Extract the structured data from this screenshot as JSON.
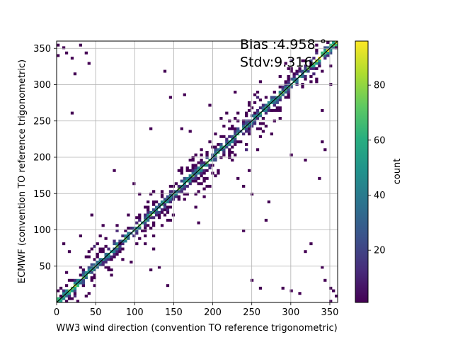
{
  "chart_data": {
    "type": "heatmap",
    "title": "",
    "xlabel": "WW3 wind direction (convention TO reference trigonometric)",
    "ylabel": "ECMWF (convention TO reference trigonometric)",
    "xlim": [
      0,
      360
    ],
    "ylim": [
      0,
      360
    ],
    "xticks": [
      0,
      50,
      100,
      150,
      200,
      250,
      300,
      350
    ],
    "yticks": [
      50,
      100,
      150,
      200,
      250,
      300,
      350
    ],
    "grid": true,
    "bin_width_deg": 3.6,
    "colorbar": {
      "label": "count",
      "min": 1,
      "max": 96,
      "ticks": [
        20,
        40,
        60,
        80
      ],
      "colormap": "viridis"
    },
    "annotations": [
      {
        "text": "Bias :4.958 °"
      },
      {
        "text": "Stdv:9.316"
      }
    ],
    "reference_line": {
      "from": [
        0,
        0
      ],
      "to": [
        360,
        360
      ],
      "color": "#000000"
    },
    "scatter_outliers": [
      {
        "x": 3,
        "y": 355
      },
      {
        "x": 12,
        "y": 345
      },
      {
        "x": 18,
        "y": 338
      },
      {
        "x": 22,
        "y": 315
      },
      {
        "x": 36,
        "y": 345
      },
      {
        "x": 42,
        "y": 330
      },
      {
        "x": 30,
        "y": 355
      },
      {
        "x": 20,
        "y": 260
      },
      {
        "x": 140,
        "y": 320
      },
      {
        "x": 145,
        "y": 283
      },
      {
        "x": 75,
        "y": 180
      },
      {
        "x": 85,
        "y": 60
      },
      {
        "x": 123,
        "y": 75
      },
      {
        "x": 120,
        "y": 45
      },
      {
        "x": 130,
        "y": 50
      },
      {
        "x": 142,
        "y": 22
      },
      {
        "x": 8,
        "y": 80
      },
      {
        "x": 16,
        "y": 70
      },
      {
        "x": 30,
        "y": 90
      },
      {
        "x": 44,
        "y": 120
      },
      {
        "x": 60,
        "y": 105
      },
      {
        "x": 120,
        "y": 240
      },
      {
        "x": 165,
        "y": 285
      },
      {
        "x": 230,
        "y": 290
      },
      {
        "x": 218,
        "y": 260
      },
      {
        "x": 260,
        "y": 305
      },
      {
        "x": 300,
        "y": 320
      },
      {
        "x": 326,
        "y": 330
      },
      {
        "x": 320,
        "y": 197
      },
      {
        "x": 335,
        "y": 172
      },
      {
        "x": 345,
        "y": 210
      },
      {
        "x": 340,
        "y": 220
      },
      {
        "x": 340,
        "y": 265
      },
      {
        "x": 300,
        "y": 205
      },
      {
        "x": 272,
        "y": 140
      },
      {
        "x": 268,
        "y": 115
      },
      {
        "x": 262,
        "y": 18
      },
      {
        "x": 250,
        "y": 30
      },
      {
        "x": 288,
        "y": 18
      },
      {
        "x": 300,
        "y": 15
      },
      {
        "x": 310,
        "y": 12
      },
      {
        "x": 318,
        "y": 70
      },
      {
        "x": 324,
        "y": 80
      },
      {
        "x": 340,
        "y": 50
      },
      {
        "x": 345,
        "y": 30
      },
      {
        "x": 352,
        "y": 20
      },
      {
        "x": 358,
        "y": 8
      },
      {
        "x": 355,
        "y": 15
      },
      {
        "x": 238,
        "y": 100
      },
      {
        "x": 250,
        "y": 150
      },
      {
        "x": 196,
        "y": 160
      },
      {
        "x": 206,
        "y": 180
      },
      {
        "x": 220,
        "y": 240
      },
      {
        "x": 195,
        "y": 270
      },
      {
        "x": 210,
        "y": 255
      },
      {
        "x": 275,
        "y": 265
      },
      {
        "x": 280,
        "y": 290
      },
      {
        "x": 295,
        "y": 330
      },
      {
        "x": 352,
        "y": 300
      },
      {
        "x": 358,
        "y": 350
      },
      {
        "x": 5,
        "y": 10
      },
      {
        "x": 350,
        "y": 3
      },
      {
        "x": 2,
        "y": 340
      },
      {
        "x": 8,
        "y": 352
      },
      {
        "x": 160,
        "y": 240
      },
      {
        "x": 170,
        "y": 235
      },
      {
        "x": 100,
        "y": 165
      },
      {
        "x": 105,
        "y": 148
      },
      {
        "x": 112,
        "y": 130
      },
      {
        "x": 180,
        "y": 110
      },
      {
        "x": 178,
        "y": 130
      },
      {
        "x": 188,
        "y": 155
      },
      {
        "x": 190,
        "y": 145
      },
      {
        "x": 240,
        "y": 160
      },
      {
        "x": 232,
        "y": 170
      },
      {
        "x": 245,
        "y": 180
      },
      {
        "x": 258,
        "y": 212
      },
      {
        "x": 275,
        "y": 232
      },
      {
        "x": 50,
        "y": 35
      },
      {
        "x": 45,
        "y": 75
      },
      {
        "x": 55,
        "y": 90
      },
      {
        "x": 70,
        "y": 45
      },
      {
        "x": 80,
        "y": 80
      },
      {
        "x": 95,
        "y": 55
      },
      {
        "x": 110,
        "y": 100
      }
    ]
  }
}
